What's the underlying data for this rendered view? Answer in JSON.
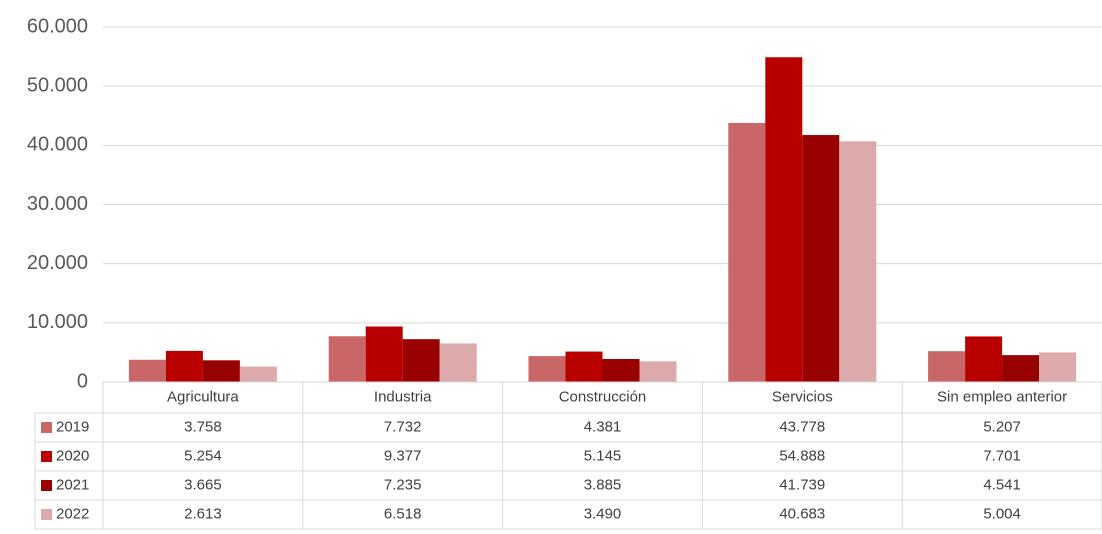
{
  "chart_data": {
    "type": "bar",
    "categories": [
      "Agricultura",
      "Industria",
      "Construcción",
      "Servicios",
      "Sin empleo anterior"
    ],
    "series": [
      {
        "name": "2019",
        "color": "#c86668",
        "values": [
          3758,
          7732,
          4381,
          43778,
          5207
        ],
        "value_labels": [
          "3.758",
          "7.732",
          "4.381",
          "43.778",
          "5.207"
        ]
      },
      {
        "name": "2020",
        "color": "#b90000",
        "values": [
          5254,
          9377,
          5145,
          54888,
          7701
        ],
        "value_labels": [
          "5.254",
          "9.377",
          "5.145",
          "54.888",
          "7.701"
        ]
      },
      {
        "name": "2021",
        "color": "#990000",
        "values": [
          3665,
          7235,
          3885,
          41739,
          4541
        ],
        "value_labels": [
          "3.665",
          "7.235",
          "3.885",
          "41.739",
          "4.541"
        ]
      },
      {
        "name": "2022",
        "color": "#dcaaab",
        "values": [
          2613,
          6518,
          3490,
          40683,
          5004
        ],
        "value_labels": [
          "2.613",
          "6.518",
          "3.490",
          "40.683",
          "5.004"
        ]
      }
    ],
    "ylim": [
      0,
      60000
    ],
    "yticks": [
      0,
      {
        "value": 10000,
        "label": "10.000"
      },
      {
        "value": 20000,
        "label": "20.000"
      },
      {
        "value": 30000,
        "label": "30.000"
      },
      {
        "value": 40000,
        "label": "40.000"
      },
      {
        "value": 50000,
        "label": "50.000"
      },
      {
        "value": 60000,
        "label": "60.000"
      }
    ],
    "grid": true
  }
}
